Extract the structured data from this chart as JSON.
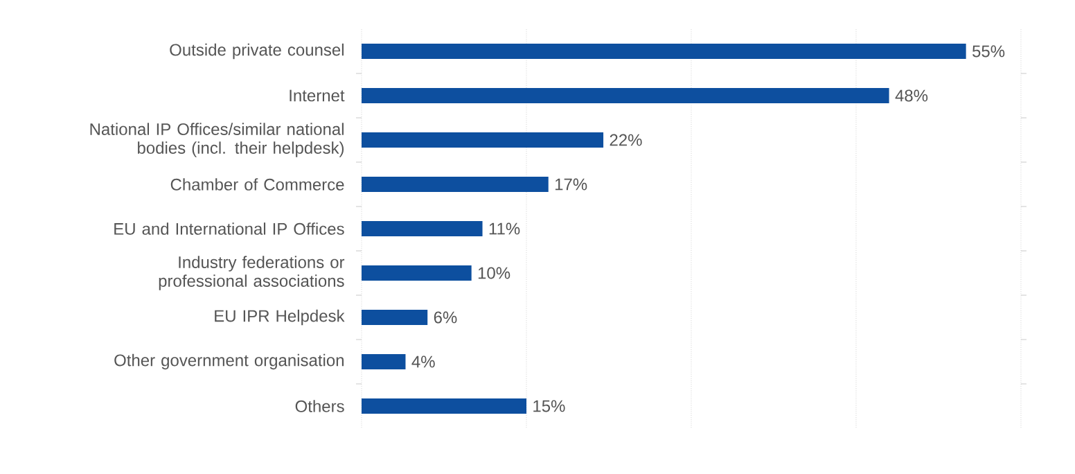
{
  "chart_data": {
    "type": "bar",
    "orientation": "horizontal",
    "categories": [
      "Outside private counsel",
      "Internet",
      "National IP Offices/similar national bodies (incl. their helpdesk)",
      "Chamber of Commerce",
      "EU and International IP Offices",
      "Industry federations or professional associations",
      "EU IPR Helpdesk",
      "Other government organisation",
      "Others"
    ],
    "values": [
      55,
      48,
      22,
      17,
      11,
      10,
      6,
      4,
      15
    ],
    "value_labels": [
      "55%",
      "48%",
      "22%",
      "17%",
      "11%",
      "10%",
      "6%",
      "4%",
      "15%"
    ],
    "color": "#0d4f9f",
    "xlim": [
      0,
      60
    ],
    "xticks": [
      {
        "value": 0,
        "label": null
      },
      {
        "value": 15,
        "label": null
      },
      {
        "value": 30,
        "label": null
      },
      {
        "value": 45,
        "label": null
      },
      {
        "value": 60,
        "label": null
      }
    ],
    "grid": "x",
    "tick_labels": "y"
  }
}
